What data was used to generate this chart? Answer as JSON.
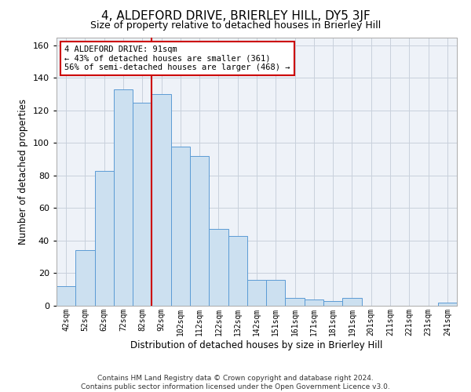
{
  "title": "4, ALDEFORD DRIVE, BRIERLEY HILL, DY5 3JF",
  "subtitle": "Size of property relative to detached houses in Brierley Hill",
  "xlabel": "Distribution of detached houses by size in Brierley Hill",
  "ylabel": "Number of detached properties",
  "categories": [
    "42sqm",
    "52sqm",
    "62sqm",
    "72sqm",
    "82sqm",
    "92sqm",
    "102sqm",
    "112sqm",
    "122sqm",
    "132sqm",
    "142sqm",
    "151sqm",
    "161sqm",
    "171sqm",
    "181sqm",
    "191sqm",
    "201sqm",
    "211sqm",
    "221sqm",
    "231sqm",
    "241sqm"
  ],
  "values": [
    12,
    34,
    83,
    133,
    125,
    130,
    98,
    92,
    47,
    43,
    16,
    16,
    5,
    4,
    3,
    5,
    0,
    0,
    0,
    0,
    2
  ],
  "bar_color": "#cce0f0",
  "bar_edge_color": "#5b9bd5",
  "vline_x": 4.5,
  "annotation_text": "4 ALDEFORD DRIVE: 91sqm\n← 43% of detached houses are smaller (361)\n56% of semi-detached houses are larger (468) →",
  "annotation_box_color": "#ffffff",
  "annotation_box_edge_color": "#cc0000",
  "vline_color": "#cc0000",
  "ylim": [
    0,
    165
  ],
  "yticks": [
    0,
    20,
    40,
    60,
    80,
    100,
    120,
    140,
    160
  ],
  "grid_color": "#c8d0dc",
  "bg_color": "#eef2f8",
  "footer_line1": "Contains HM Land Registry data © Crown copyright and database right 2024.",
  "footer_line2": "Contains public sector information licensed under the Open Government Licence v3.0.",
  "title_fontsize": 11,
  "subtitle_fontsize": 9,
  "xlabel_fontsize": 8.5,
  "ylabel_fontsize": 8.5,
  "ann_fontsize": 7.5,
  "footer_fontsize": 6.5
}
